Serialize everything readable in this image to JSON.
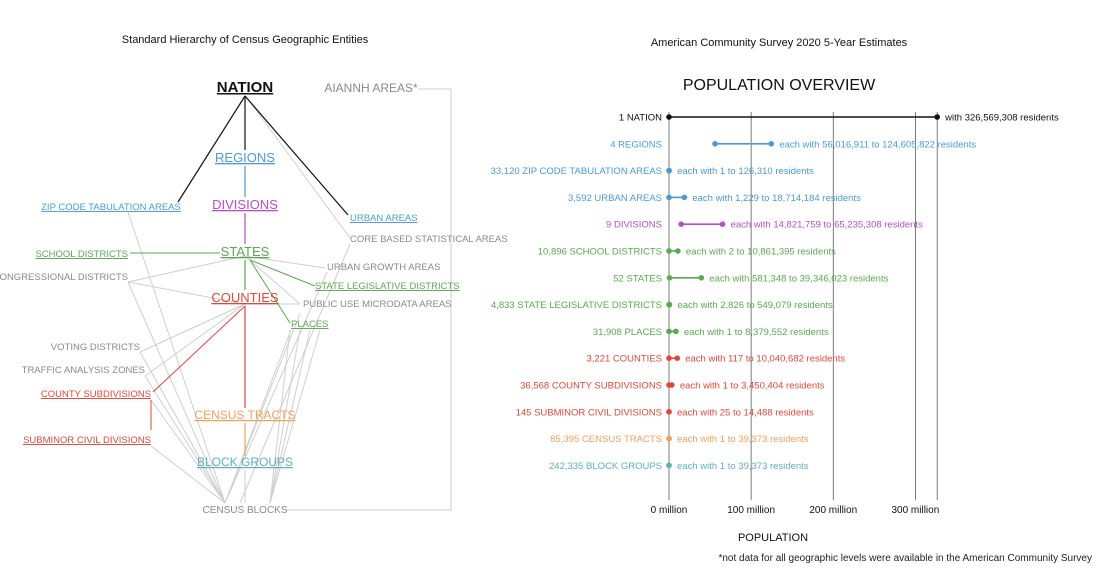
{
  "colors": {
    "black": "#111111",
    "blue": "#4a9bd4",
    "purple": "#b44fc4",
    "green": "#5aaa4f",
    "red": "#e0473a",
    "orange": "#f0a05a",
    "teal": "#5fb0b8",
    "gray": "#8a8a8a",
    "line_gray": "#cfcfcf"
  },
  "hierarchy": {
    "title": "Standard Hierarchy of Census Geographic Entities",
    "nodes": {
      "nation": "NATION",
      "aiannh": "AIANNH AREAS*",
      "regions": "REGIONS",
      "divisions": "DIVISIONS",
      "zcta": "ZIP CODE TABULATION AREAS",
      "urban": "URBAN AREAS",
      "cbsa": "CORE BASED STATISTICAL AREAS",
      "school": "SCHOOL DISTRICTS",
      "states": "STATES",
      "congressional": "CONGRESSIONAL DISTRICTS",
      "urban_growth": "URBAN GROWTH AREAS",
      "state_leg": "STATE LEGISLATIVE DISTRICTS",
      "counties": "COUNTIES",
      "pumas": "PUBLIC USE MICRODATA AREAS",
      "places": "PLACES",
      "voting": "VOTING DISTRICTS",
      "taz": "TRAFFIC ANALYSIS ZONES",
      "county_sub": "COUNTY SUBDIVISIONS",
      "subminor": "SUBMINOR CIVIL DIVISIONS",
      "tracts": "CENSUS TRACTS",
      "block_groups": "BLOCK GROUPS",
      "blocks": "CENSUS BLOCKS"
    }
  },
  "chart_data": {
    "type": "dumbbell",
    "subtitle": "American Community Survey 2020 5-Year Estimates",
    "title": "POPULATION OVERVIEW",
    "xlabel": "POPULATION",
    "xlim": [
      0,
      330000000
    ],
    "xticks": [
      {
        "value": 0,
        "label": "0 million"
      },
      {
        "value": 100000000,
        "label": "100 million"
      },
      {
        "value": 200000000,
        "label": "200 million"
      },
      {
        "value": 300000000,
        "label": "300 million"
      }
    ],
    "rows": [
      {
        "label": "1 NATION",
        "detail": "with 326,569,308 residents",
        "min": 0,
        "max": 326569308,
        "color": "#111111"
      },
      {
        "label": "4 REGIONS",
        "detail": "each with 56,016,911 to 124,605,822 residents",
        "min": 56016911,
        "max": 124605822,
        "color": "#4a9bd4"
      },
      {
        "label": "33,120 ZIP CODE TABULATION AREAS",
        "detail": "each with 1 to 126,310 residents",
        "min": 1,
        "max": 126310,
        "color": "#4a9bd4"
      },
      {
        "label": "3,592 URBAN AREAS",
        "detail": "each with 1,229 to 18,714,184 residents",
        "min": 1229,
        "max": 18714184,
        "color": "#4a9bd4"
      },
      {
        "label": "9 DIVISIONS",
        "detail": "each with 14,821,759 to 65,235,308 residents",
        "min": 14821759,
        "max": 65235308,
        "color": "#b44fc4"
      },
      {
        "label": "10,896 SCHOOL DISTRICTS",
        "detail": "each with 2 to 10,861,395 residents",
        "min": 2,
        "max": 10861395,
        "color": "#5aaa4f"
      },
      {
        "label": "52 STATES",
        "detail": "each with 581,348 to 39,346,023 residents",
        "min": 581348,
        "max": 39346023,
        "color": "#5aaa4f"
      },
      {
        "label": "4,833 STATE LEGISLATIVE DISTRICTS",
        "detail": "each with 2,826 to 549,079 residents",
        "min": 2826,
        "max": 549079,
        "color": "#5aaa4f"
      },
      {
        "label": "31,908 PLACES",
        "detail": "each with 1 to 8,379,552 residents",
        "min": 1,
        "max": 8379552,
        "color": "#5aaa4f"
      },
      {
        "label": "3,221 COUNTIES",
        "detail": "each with 117 to 10,040,682 residents",
        "min": 117,
        "max": 10040682,
        "color": "#e0473a"
      },
      {
        "label": "36,568 COUNTY SUBDIVISIONS",
        "detail": "each with 1 to 3,450,404 residents",
        "min": 1,
        "max": 3450404,
        "color": "#e0473a"
      },
      {
        "label": "145 SUBMINOR CIVIL DIVISIONS",
        "detail": "each with 25 to 14,488 residents",
        "min": 25,
        "max": 14488,
        "color": "#e0473a"
      },
      {
        "label": "85,395 CENSUS TRACTS",
        "detail": "each with 1 to 39,373 residents",
        "min": 1,
        "max": 39373,
        "color": "#f0a05a"
      },
      {
        "label": "242,335 BLOCK GROUPS",
        "detail": "each with 1 to 39,373 residents",
        "min": 1,
        "max": 39373,
        "color": "#5fb0b8"
      }
    ]
  },
  "footnote": "*not data for all geographic levels were available in the American Community Survey"
}
